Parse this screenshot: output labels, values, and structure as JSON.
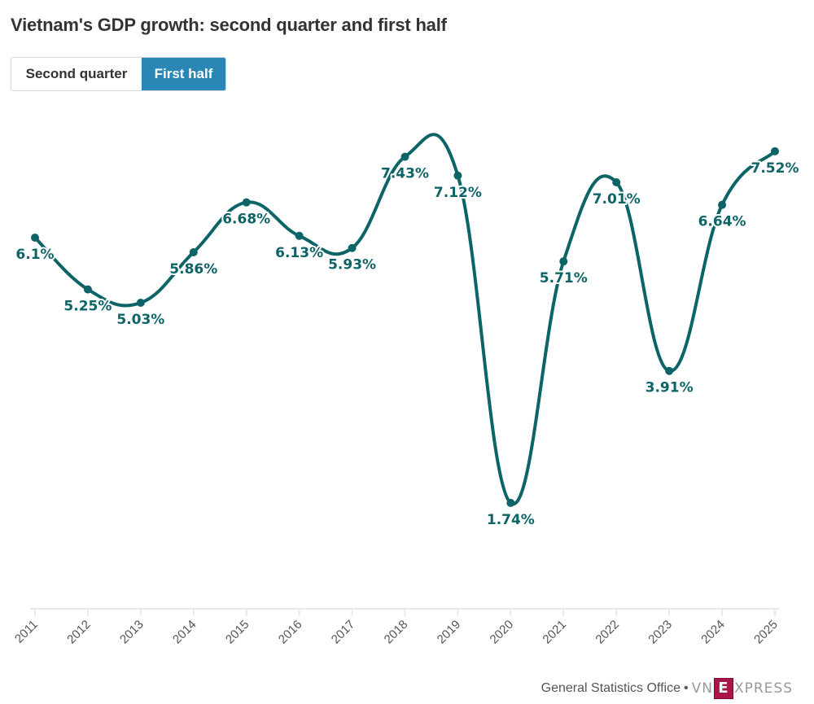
{
  "title": "Vietnam's GDP growth: second quarter and first half",
  "toggle": {
    "options": [
      "Second quarter",
      "First half"
    ],
    "selected": "First half"
  },
  "footer": {
    "source": "General Statistics Office",
    "separator": "•",
    "logo_prefix": "VN",
    "logo_mark": "E",
    "logo_suffix": "XPRESS"
  },
  "colors": {
    "series": "#0d6466",
    "active_button": "#2a86b5",
    "axis": "#e8e8e8",
    "tick_label": "#555555"
  },
  "chart_data": {
    "type": "line",
    "title": "Vietnam's GDP growth: second quarter and first half",
    "subtitle": "First half",
    "xlabel": "",
    "ylabel": "",
    "ylim": [
      0,
      8
    ],
    "grid": false,
    "smooth": true,
    "categories": [
      "2011",
      "2012",
      "2013",
      "2014",
      "2015",
      "2016",
      "2017",
      "2018",
      "2019",
      "2020",
      "2021",
      "2022",
      "2023",
      "2024",
      "2025"
    ],
    "series": [
      {
        "name": "First half GDP growth",
        "values": [
          6.1,
          5.25,
          5.03,
          5.86,
          6.68,
          6.13,
          5.93,
          7.43,
          7.12,
          1.74,
          5.71,
          7.01,
          3.91,
          6.64,
          7.52
        ],
        "labels": [
          "6.1%",
          "5.25%",
          "5.03%",
          "5.86%",
          "6.68%",
          "6.13%",
          "5.93%",
          "7.43%",
          "7.12%",
          "1.74%",
          "5.71%",
          "7.01%",
          "3.91%",
          "6.64%",
          "7.52%"
        ]
      }
    ]
  }
}
